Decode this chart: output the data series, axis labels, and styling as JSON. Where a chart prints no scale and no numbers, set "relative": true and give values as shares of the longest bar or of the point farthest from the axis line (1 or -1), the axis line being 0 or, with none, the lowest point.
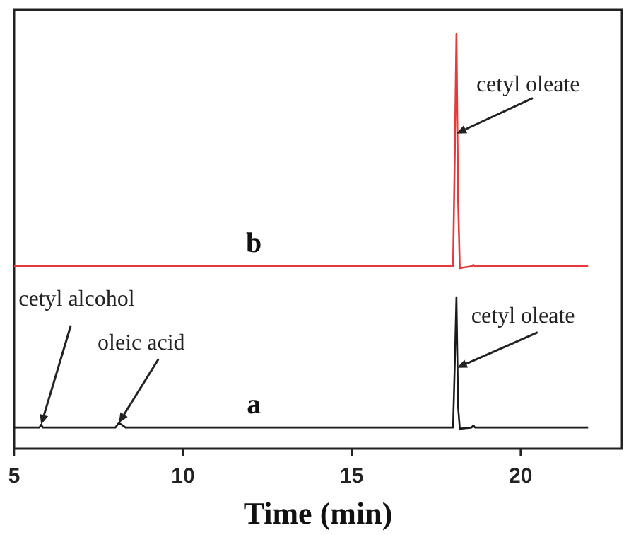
{
  "chart_data": {
    "type": "line",
    "relative": true,
    "xlabel": "Time (min)",
    "xlim": [
      5,
      23
    ],
    "xticks": [
      5,
      10,
      15,
      20
    ],
    "legend": false,
    "grid": false,
    "marker": "none",
    "line_style": "solid",
    "series": [
      {
        "name": "a",
        "color": "#1a1a1a",
        "x": [
          5,
          5.75,
          5.8,
          5.85,
          8.0,
          8.1,
          8.2,
          8.3,
          18.0,
          18.05,
          18.1,
          18.15,
          18.2,
          18.55,
          18.6,
          18.65,
          22
        ],
        "values": [
          0.051,
          0.051,
          0.058,
          0.051,
          0.051,
          0.062,
          0.057,
          0.051,
          0.051,
          0.2,
          0.365,
          0.1,
          0.048,
          0.051,
          0.056,
          0.051,
          0.051
        ]
      },
      {
        "name": "b",
        "color": "#e8393a",
        "x": [
          5,
          18.0,
          18.05,
          18.1,
          18.15,
          18.2,
          18.55,
          18.6,
          18.65,
          22
        ],
        "values": [
          0.44,
          0.44,
          0.7,
          1,
          0.6,
          0.435,
          0.44,
          0.443,
          0.44,
          0.44
        ]
      }
    ],
    "annotations": [
      {
        "text": "cetyl alcohol",
        "x": 5.8,
        "y": 0.058
      },
      {
        "text": "oleic acid",
        "x": 8.1,
        "y": 0.062
      },
      {
        "text": "cetyl oleate",
        "x": 18.1,
        "y": 0.76
      },
      {
        "text": "cetyl oleate",
        "x": 18.12,
        "y": 0.195
      }
    ]
  }
}
